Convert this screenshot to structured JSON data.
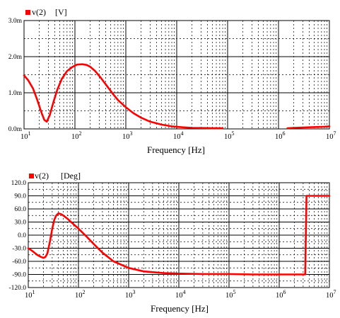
{
  "chart_data": [
    {
      "type": "line",
      "legend": {
        "label": "v(2)",
        "unit": "[V]"
      },
      "xlabel": "Frequency [Hz]",
      "xscale": "log",
      "xlim": [
        10,
        10000000
      ],
      "x_tick_labels": [
        {
          "base": "10",
          "exp": "1"
        },
        {
          "base": "10",
          "exp": "2"
        },
        {
          "base": "10",
          "exp": "3"
        },
        {
          "base": "10",
          "exp": "4"
        },
        {
          "base": "10",
          "exp": "5"
        },
        {
          "base": "10",
          "exp": "6"
        },
        {
          "base": "10",
          "exp": "7"
        }
      ],
      "ylim": [
        0,
        3.0
      ],
      "yticks": [
        0,
        1.0,
        2.0,
        3.0
      ],
      "y_tick_labels": [
        "0.0m",
        "1.0m",
        "2.0m",
        "3.0m"
      ],
      "y_minor_step": 0.5,
      "grid": true,
      "series": [
        {
          "color": "#ff0000",
          "x": [
            10,
            12,
            15,
            18,
            22,
            25,
            28,
            32,
            38,
            45,
            55,
            70,
            90,
            110,
            140,
            170,
            200,
            250,
            320,
            420,
            550,
            700,
            1000,
            1400,
            2000,
            3000,
            5000,
            8000,
            13000,
            20000,
            30000,
            50000,
            80000
          ],
          "y": [
            1.48,
            1.35,
            1.12,
            0.82,
            0.45,
            0.25,
            0.2,
            0.38,
            0.75,
            1.08,
            1.38,
            1.6,
            1.72,
            1.78,
            1.79,
            1.77,
            1.72,
            1.6,
            1.42,
            1.2,
            0.98,
            0.8,
            0.6,
            0.44,
            0.31,
            0.2,
            0.12,
            0.07,
            0.045,
            0.03,
            0.025,
            0.022,
            0.02
          ]
        },
        {
          "color": "#ff0000",
          "x": [
            1500000,
            2000000,
            3000000,
            5000000,
            8000000,
            10000000
          ],
          "y": [
            0.02,
            0.03,
            0.04,
            0.05,
            0.06,
            0.07
          ]
        }
      ]
    },
    {
      "type": "line",
      "legend": {
        "label": "v(2)",
        "unit": "[Deg]"
      },
      "xlabel": "Frequency [Hz]",
      "xscale": "log",
      "xlim": [
        10,
        10000000
      ],
      "x_tick_labels": [
        {
          "base": "10",
          "exp": "1"
        },
        {
          "base": "10",
          "exp": "2"
        },
        {
          "base": "10",
          "exp": "3"
        },
        {
          "base": "10",
          "exp": "4"
        },
        {
          "base": "10",
          "exp": "5"
        },
        {
          "base": "10",
          "exp": "6"
        },
        {
          "base": "10",
          "exp": "7"
        }
      ],
      "ylim": [
        -120,
        120
      ],
      "yticks": [
        -120,
        -90,
        -60,
        -30,
        0,
        30,
        60,
        90,
        120
      ],
      "y_tick_labels": [
        "-120.0",
        "-90.0",
        "-60.0",
        "-30.0",
        "0.0",
        "30.0",
        "60.0",
        "90.0",
        "120.0"
      ],
      "y_minor_step": 15,
      "grid": true,
      "series": [
        {
          "color": "#ff0000",
          "x": [
            10,
            12,
            15,
            18,
            20,
            22,
            24,
            27,
            30,
            33,
            36,
            40,
            45,
            50,
            60,
            80,
            100,
            150,
            200,
            300,
            500,
            1000,
            2000,
            5000,
            10000,
            30000,
            100000,
            300000,
            3300000,
            3400000,
            3500000,
            10000000
          ],
          "y": [
            -30,
            -36,
            -45,
            -50,
            -52,
            -50,
            -42,
            -15,
            15,
            35,
            45,
            50,
            48,
            45,
            38,
            25,
            15,
            -5,
            -20,
            -40,
            -60,
            -75,
            -83,
            -87,
            -88,
            -89,
            -89,
            -90,
            -90,
            0,
            90,
            90
          ]
        }
      ]
    }
  ]
}
